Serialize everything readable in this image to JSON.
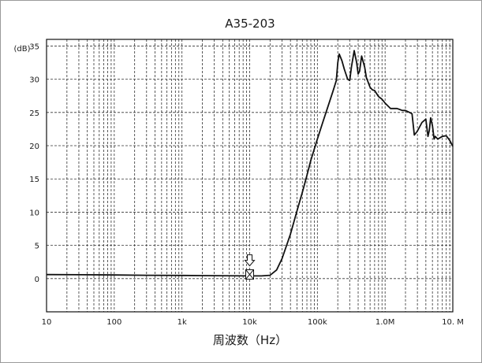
{
  "chart_data": {
    "type": "line",
    "title": "A35-203",
    "xlabel": "周波数（Hz）",
    "ylabel": "(dB)",
    "x_scale": "log",
    "xlim": [
      10,
      10000000
    ],
    "ylim": [
      -5,
      36
    ],
    "grid": true,
    "x_ticks": [
      10,
      100,
      1000,
      10000,
      100000,
      1000000,
      10000000
    ],
    "x_tick_labels": [
      "10",
      "100",
      "1k",
      "10k",
      "100k",
      "1.0M",
      "10. M"
    ],
    "y_ticks": [
      0,
      5,
      10,
      15,
      20,
      25,
      30,
      35
    ],
    "y_tick_labels": [
      "0",
      "5",
      "10",
      "15",
      "20",
      "25",
      "30",
      "35"
    ],
    "marker": {
      "x": 10000,
      "y": 0.5,
      "symbol": "arrow-box-x"
    },
    "series": [
      {
        "x": [
          10,
          30,
          100,
          300,
          1000,
          3000,
          10000,
          15000,
          20000,
          25000,
          30000,
          40000,
          50000,
          60000,
          70000,
          80000,
          100000,
          120000,
          150000,
          170000,
          180000,
          190000,
          200000,
          210000,
          230000,
          250000,
          280000,
          300000,
          320000,
          350000,
          380000,
          400000,
          420000,
          450000,
          500000,
          530000,
          550000,
          600000,
          650000,
          700000,
          800000,
          900000,
          1000000,
          1200000,
          1500000,
          1800000,
          2000000,
          2300000,
          2500000,
          2700000,
          3000000,
          3500000,
          4000000,
          4300000,
          4500000,
          4700000,
          5000000,
          5300000,
          5500000,
          6000000,
          7000000,
          8000000,
          9000000,
          10000000
        ],
        "y": [
          0.6,
          0.58,
          0.55,
          0.5,
          0.47,
          0.44,
          0.4,
          0.4,
          0.5,
          1.3,
          3.0,
          6.7,
          10.2,
          13.0,
          15.5,
          17.8,
          21.0,
          23.5,
          26.5,
          28.2,
          29.0,
          29.8,
          32.5,
          33.8,
          32.8,
          31.5,
          30.0,
          29.8,
          32.0,
          34.3,
          32.5,
          30.8,
          31.2,
          33.5,
          31.8,
          30.2,
          29.8,
          28.8,
          28.4,
          28.3,
          27.4,
          27.0,
          26.4,
          25.6,
          25.6,
          25.3,
          25.3,
          25.0,
          24.8,
          21.6,
          22.2,
          23.5,
          24.0,
          21.4,
          22.3,
          24.2,
          23.0,
          21.0,
          21.4,
          21.0,
          21.4,
          21.5,
          20.8,
          19.9
        ]
      }
    ]
  }
}
